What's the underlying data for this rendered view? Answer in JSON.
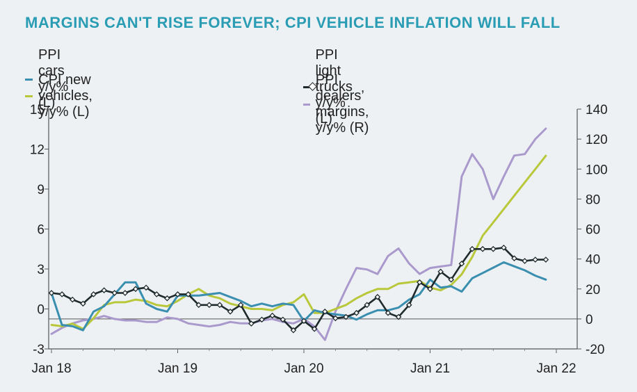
{
  "chart_data": {
    "type": "line",
    "title": "MARGINS CAN'T RISE FOREVER; CPI VEHICLE INFLATION WILL FALL",
    "xlabel": "",
    "ylabel": "",
    "x_tick_labels": [
      "Jan 18",
      "Jan 19",
      "Jan 20",
      "Jan 21",
      "Jan 22"
    ],
    "y_left": {
      "ticks": [
        -3,
        0,
        3,
        6,
        9,
        12,
        15
      ],
      "ylim": [
        -3,
        15
      ]
    },
    "y_right": {
      "ticks": [
        -20,
        0,
        20,
        40,
        60,
        80,
        100,
        120,
        140
      ],
      "ylim": [
        -20,
        140
      ]
    },
    "months": 48,
    "series": [
      {
        "name": "PPI cars y/y% (L)",
        "axis": "left",
        "color": "#3a8fb0",
        "marker": false,
        "values": [
          1.2,
          -1.2,
          -1.3,
          -1.6,
          -0.2,
          0.2,
          1.1,
          2.0,
          2.0,
          0.4,
          0.0,
          -0.2,
          1.0,
          1.0,
          1.0,
          1.1,
          1.2,
          0.9,
          0.6,
          0.2,
          0.4,
          0.2,
          0.4,
          0.3,
          -0.9,
          -0.1,
          -0.3,
          -0.4,
          -0.5,
          -0.8,
          -0.4,
          -0.1,
          -0.1,
          0.1,
          0.7,
          1.1,
          2.2,
          1.6,
          1.7,
          1.3,
          2.3,
          2.7,
          3.1,
          3.5,
          3.2,
          2.9,
          2.5,
          2.2
        ]
      },
      {
        "name": "PPI light trucks y/y% (L)",
        "axis": "left",
        "color": "#1e2a2b",
        "marker": true,
        "values": [
          1.2,
          1.1,
          0.7,
          0.4,
          1.1,
          1.4,
          1.2,
          1.2,
          1.5,
          1.6,
          1.1,
          0.8,
          1.1,
          1.1,
          0.3,
          0.3,
          0.3,
          -0.2,
          0.3,
          -1.1,
          -0.8,
          -0.5,
          -0.8,
          -1.6,
          -0.9,
          -1.5,
          -0.2,
          -0.7,
          -0.6,
          -0.3,
          0.3,
          0.9,
          -0.3,
          -0.6,
          0.3,
          2.0,
          1.5,
          2.8,
          2.2,
          3.4,
          4.5,
          4.5,
          4.5,
          4.6,
          3.8,
          3.6,
          3.7,
          3.7
        ]
      },
      {
        "name": "CPI new vehicles, y/y% (L)",
        "axis": "left",
        "color": "#b8c83a",
        "marker": false,
        "values": [
          -1.2,
          -1.3,
          -1.1,
          -1.5,
          -0.7,
          0.3,
          0.5,
          0.5,
          0.7,
          0.6,
          0.3,
          0.2,
          0.6,
          1.1,
          1.5,
          1.0,
          0.8,
          0.4,
          0.2,
          0.0,
          0.0,
          -0.1,
          0.3,
          0.5,
          1.1,
          -0.3,
          -0.3,
          0.0,
          0.3,
          0.8,
          1.2,
          1.5,
          1.5,
          1.9,
          2.0,
          2.1,
          1.6,
          1.4,
          1.8,
          2.6,
          3.9,
          5.5,
          6.5,
          7.5,
          8.5,
          9.5,
          10.5,
          11.5
        ]
      },
      {
        "name": "PPI dealers’ margins, y/y% (R)",
        "axis": "right",
        "color": "#a999cc",
        "marker": false,
        "values": [
          -10.0,
          -6.0,
          -3.0,
          -1.0,
          0.0,
          2.0,
          0.0,
          -1.0,
          -1.0,
          -2.0,
          -2.0,
          1.0,
          0.0,
          -3.0,
          -4.0,
          -5.0,
          -4.0,
          -2.0,
          -3.0,
          -3.0,
          -1.0,
          0.0,
          -2.0,
          -3.0,
          0.0,
          -5.0,
          -14.0,
          5.0,
          20.0,
          34.0,
          33.0,
          30.0,
          42.0,
          47.0,
          37.0,
          30.0,
          34.0,
          35.0,
          36.0,
          95.0,
          110.0,
          100.0,
          80.0,
          95.0,
          109.0,
          110.0,
          120.0,
          127.0
        ]
      }
    ],
    "grid": false,
    "legend": {
      "placement": "top"
    }
  }
}
